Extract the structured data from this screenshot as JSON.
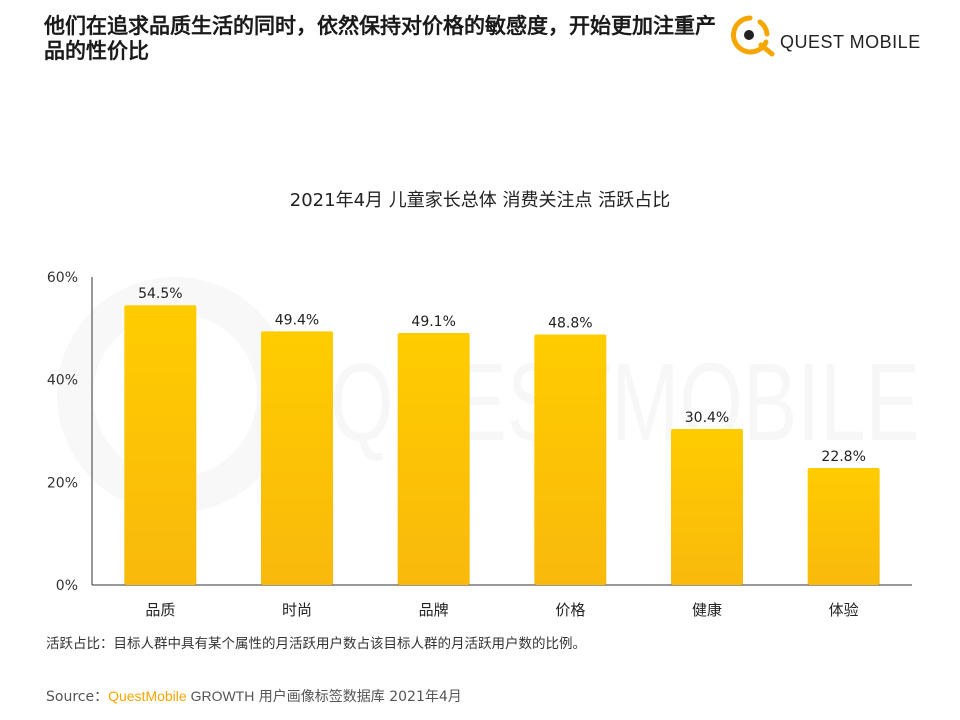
{
  "headline": "他们在追求品质生活的同时，依然保持对价格的敏感度，开始更加注重产品的性价比",
  "logo": {
    "text": "QUEST MOBILE",
    "icon": "quest-mobile-logo-icon"
  },
  "watermark": {
    "text": "QUESTMOBILE"
  },
  "colors": {
    "bar_top": "#ffcc00",
    "bar_bottom": "#f9b90c",
    "accent": "#f7a600"
  },
  "chart_data": {
    "type": "bar",
    "title": "2021年4月 儿童家长总体 消费关注点 活跃占比",
    "categories": [
      "品质",
      "时尚",
      "品牌",
      "价格",
      "健康",
      "体验"
    ],
    "values": [
      54.5,
      49.4,
      49.1,
      48.8,
      30.4,
      22.8
    ],
    "value_labels": [
      "54.5%",
      "49.4%",
      "49.1%",
      "48.8%",
      "30.4%",
      "22.8%"
    ],
    "yticks": [
      "0%",
      "20%",
      "40%",
      "60%"
    ],
    "ytick_values": [
      0,
      20,
      40,
      60
    ],
    "ylim": [
      0,
      60
    ],
    "xlabel": "",
    "ylabel": "",
    "grid": false,
    "legend": "none"
  },
  "note": "活跃占比：目标人群中具有某个属性的月活跃用户数占该目标人群的月活跃用户数的比例。",
  "source": {
    "prefix": "Source：",
    "brand": "QuestMobile",
    "growth": " GROWTH",
    "rest": " 用户画像标签数据库 2021年4月"
  }
}
